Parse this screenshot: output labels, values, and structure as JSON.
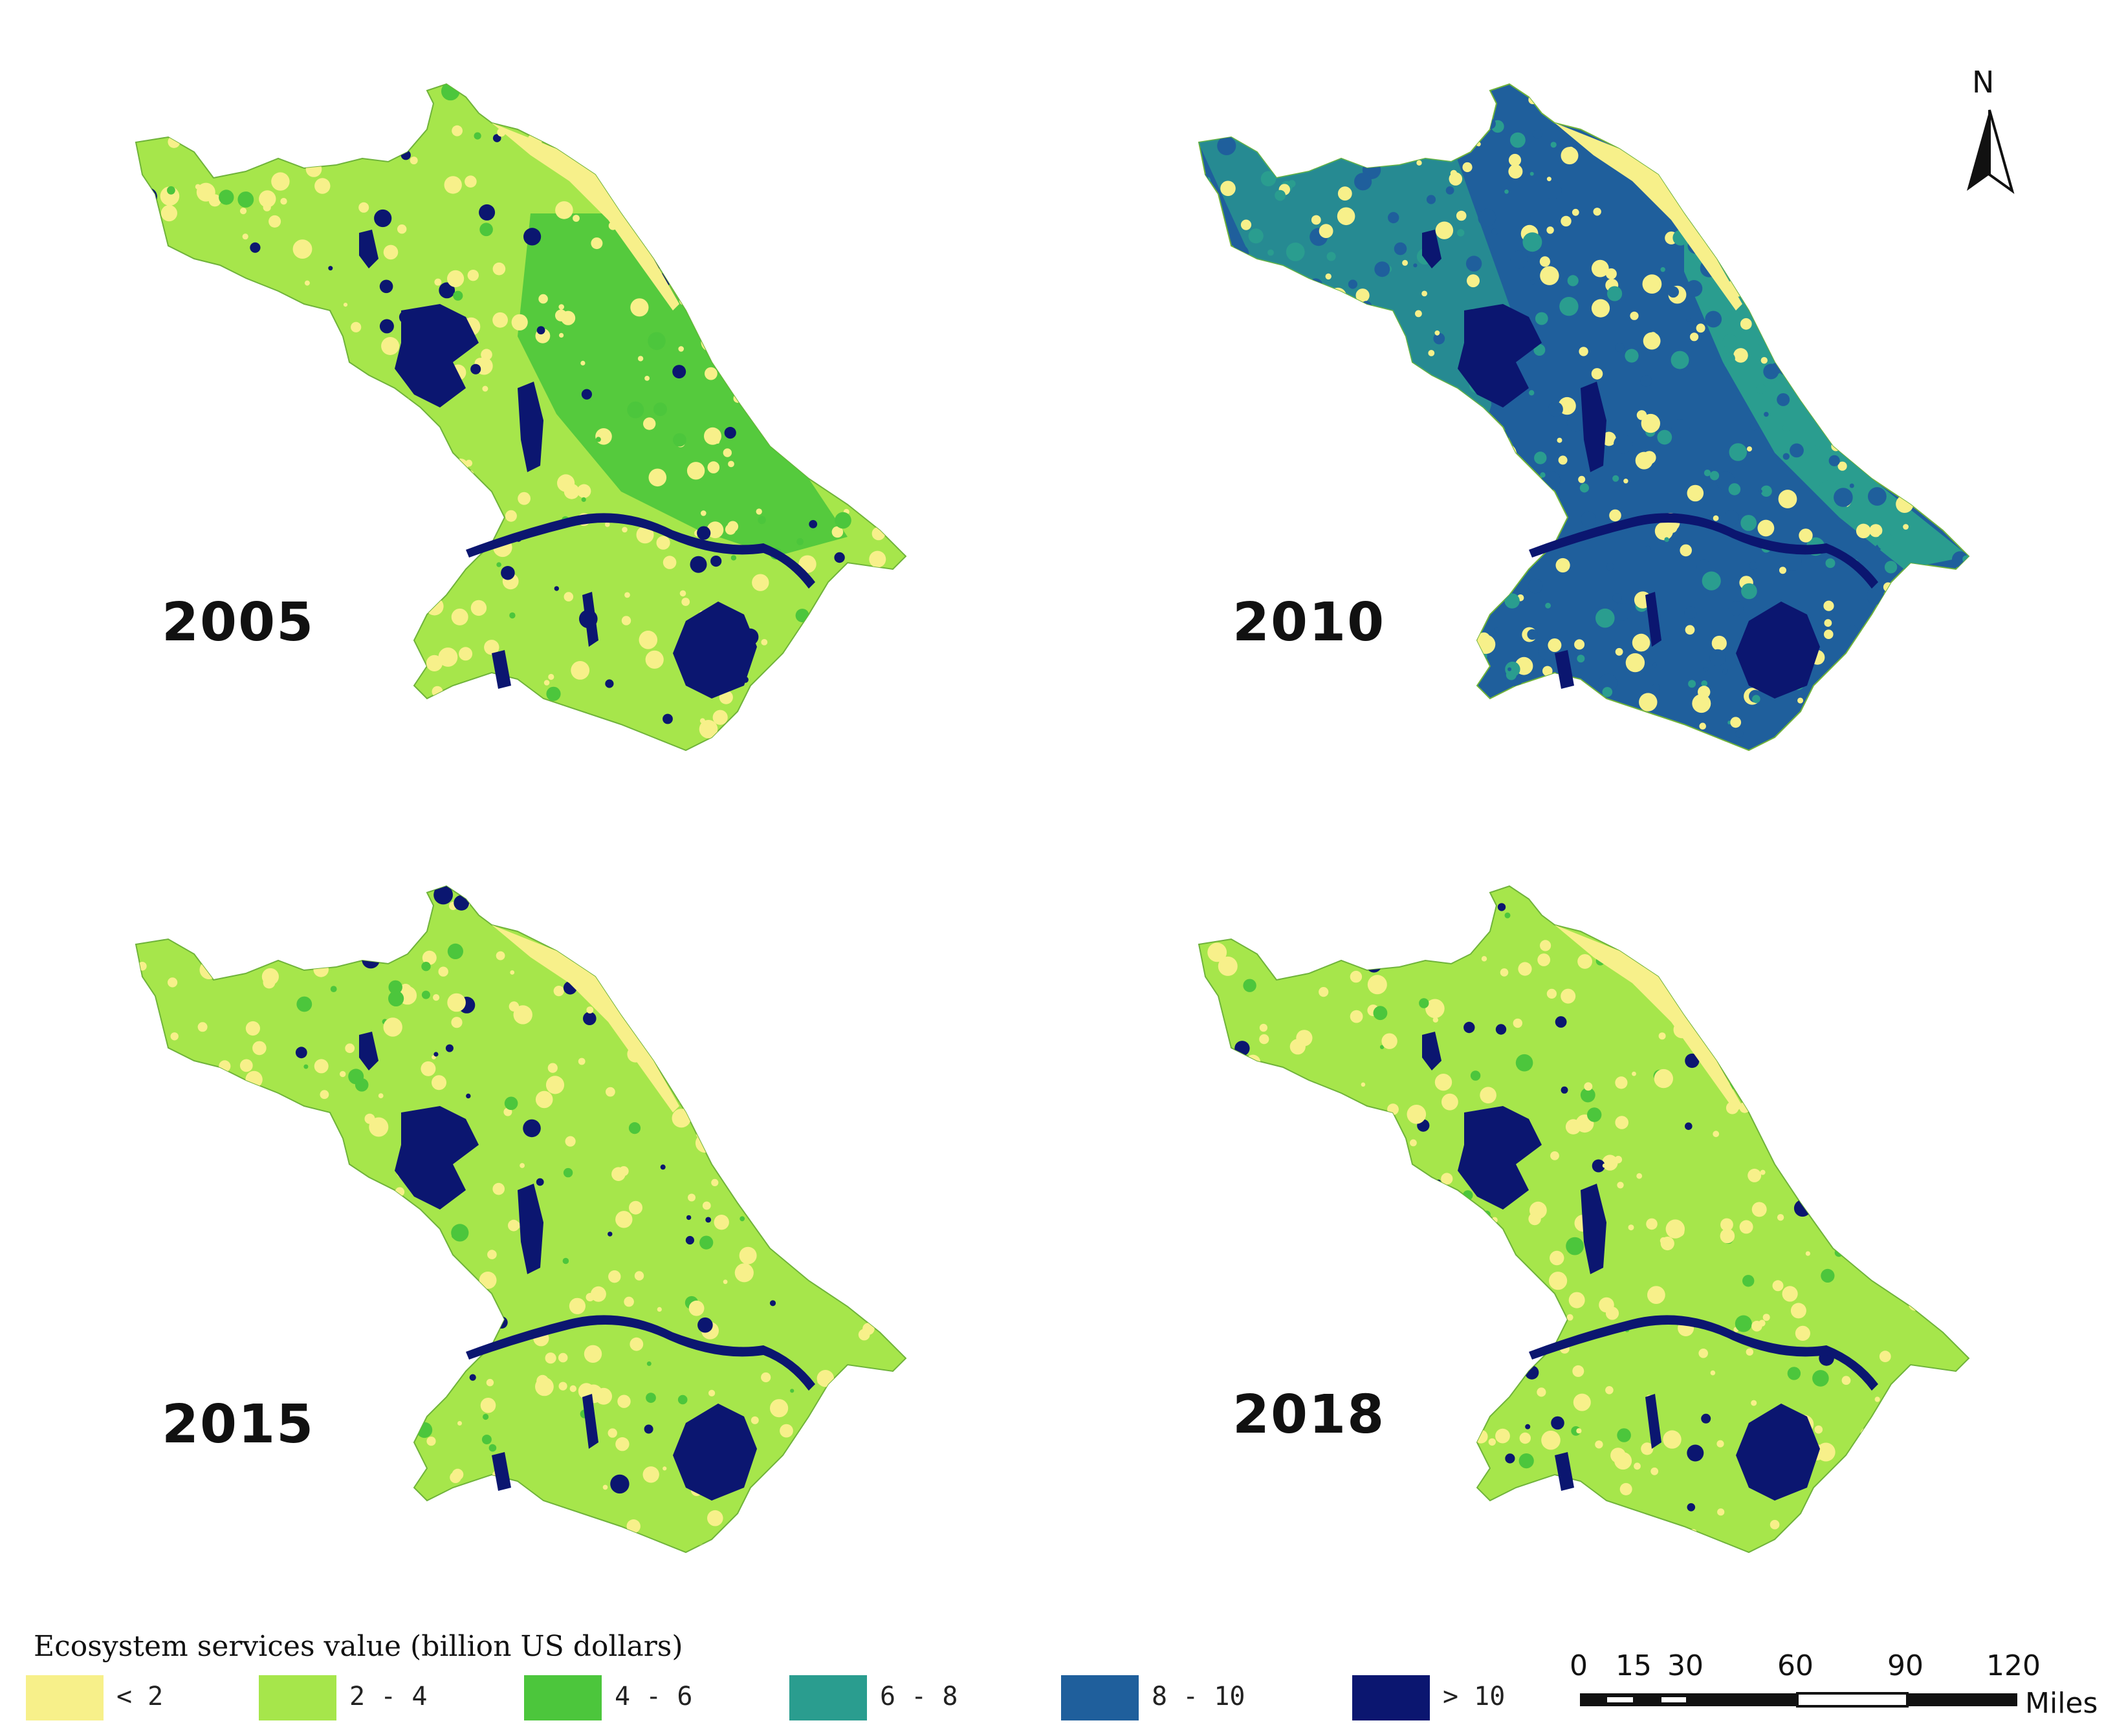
{
  "figure": {
    "panels": [
      {
        "year": "2005",
        "dominant_class": "2 - 4"
      },
      {
        "year": "2010",
        "dominant_class": "8 - 10"
      },
      {
        "year": "2015",
        "dominant_class": "2 - 4"
      },
      {
        "year": "2018",
        "dominant_class": "2 - 4"
      }
    ],
    "north_label": "N",
    "legend": {
      "title": "Ecosystem services value (billion US dollars)",
      "items": [
        {
          "label": "< 2",
          "color": "#f7f08a"
        },
        {
          "label": "2 - 4",
          "color": "#a6e64b"
        },
        {
          "label": "4 - 6",
          "color": "#4cc63c"
        },
        {
          "label": "6 - 8",
          "color": "#2a9d8f"
        },
        {
          "label": "8 - 10",
          "color": "#1f5f9c"
        },
        {
          "label": "> 10",
          "color": "#0b1670"
        }
      ]
    },
    "scale_bar": {
      "ticks": [
        "0",
        "15",
        "30",
        "60",
        "90",
        "120"
      ],
      "unit": "Miles"
    }
  }
}
